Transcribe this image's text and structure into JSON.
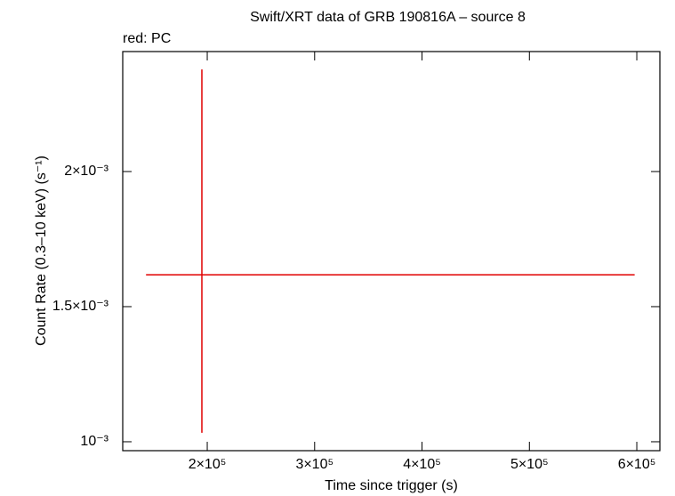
{
  "chart_data": {
    "type": "scatter",
    "title": "Swift/XRT data of GRB 190816A – source 8",
    "annotation": "red: PC",
    "x_label": "Time since trigger (s)",
    "y_label": "Count Rate (0.3–10 keV) (s⁻¹)",
    "series": [
      {
        "color": "#e00000",
        "x": [
          195000
        ],
        "values": [
          0.001618
        ],
        "x_err_minus": [
          52000
        ],
        "x_err_plus": [
          403000
        ],
        "y_err_minus": [
          0.000585
        ],
        "y_err_plus": [
          0.00076
        ]
      }
    ],
    "xlim": [
      121300,
      621500
    ],
    "ylim": [
      0.000967,
      0.002444
    ],
    "xticks": [
      {
        "value": 200000,
        "label": "2×10⁵"
      },
      {
        "value": 300000,
        "label": "3×10⁵"
      },
      {
        "value": 400000,
        "label": "4×10⁵"
      },
      {
        "value": 500000,
        "label": "5×10⁵"
      },
      {
        "value": 600000,
        "label": "6×10⁵"
      }
    ],
    "yticks": [
      {
        "value": 0.001,
        "label": "10⁻³"
      },
      {
        "value": 0.0015,
        "label": "1.5×10⁻³"
      },
      {
        "value": 0.002,
        "label": "2×10⁻³"
      }
    ]
  }
}
